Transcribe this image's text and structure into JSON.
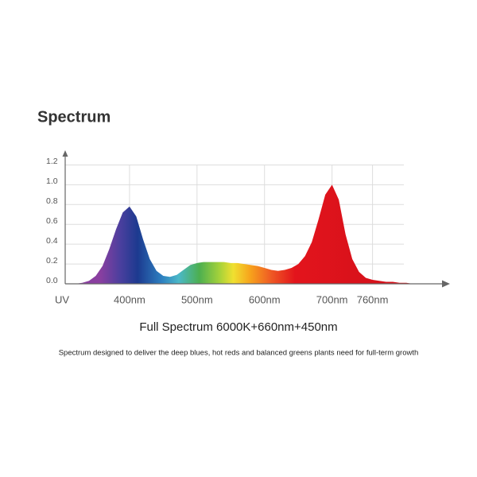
{
  "chart_data": {
    "type": "area",
    "title": "Spectrum",
    "x": [
      320,
      330,
      340,
      350,
      360,
      370,
      380,
      390,
      400,
      410,
      420,
      430,
      440,
      450,
      460,
      470,
      480,
      490,
      500,
      510,
      520,
      530,
      540,
      550,
      560,
      570,
      580,
      590,
      600,
      610,
      620,
      630,
      640,
      650,
      660,
      670,
      680,
      690,
      700,
      710,
      720,
      730,
      740,
      750,
      760,
      770,
      780,
      790,
      800,
      810,
      820
    ],
    "values": [
      0,
      0.01,
      0.03,
      0.08,
      0.18,
      0.35,
      0.55,
      0.72,
      0.78,
      0.68,
      0.45,
      0.25,
      0.13,
      0.08,
      0.07,
      0.09,
      0.14,
      0.19,
      0.21,
      0.22,
      0.22,
      0.22,
      0.22,
      0.21,
      0.21,
      0.2,
      0.19,
      0.18,
      0.16,
      0.14,
      0.13,
      0.14,
      0.16,
      0.2,
      0.28,
      0.42,
      0.65,
      0.9,
      1.0,
      0.85,
      0.5,
      0.25,
      0.12,
      0.06,
      0.04,
      0.03,
      0.02,
      0.02,
      0.01,
      0.01,
      0
    ],
    "xlim": [
      300,
      870
    ],
    "xticks": [
      {
        "value": 300,
        "label": "UV"
      },
      {
        "value": 400,
        "label": "400nm"
      },
      {
        "value": 500,
        "label": "500nm"
      },
      {
        "value": 600,
        "label": "600nm"
      },
      {
        "value": 700,
        "label": "700nm"
      },
      {
        "value": 760,
        "label": "760nm"
      }
    ],
    "ylim": [
      0,
      1.3
    ],
    "yticks": [
      {
        "value": 0,
        "label": "0.0"
      },
      0.2,
      0.4,
      0.6,
      0.8,
      {
        "value": 1,
        "label": "1.0"
      },
      1.2
    ],
    "grid": true,
    "xlabel": "Full Spectrum 6000K+660nm+450nm",
    "annotation": "Spectrum designed to deliver the deep blues, hot reds and balanced greens plants need for full-term growth"
  }
}
